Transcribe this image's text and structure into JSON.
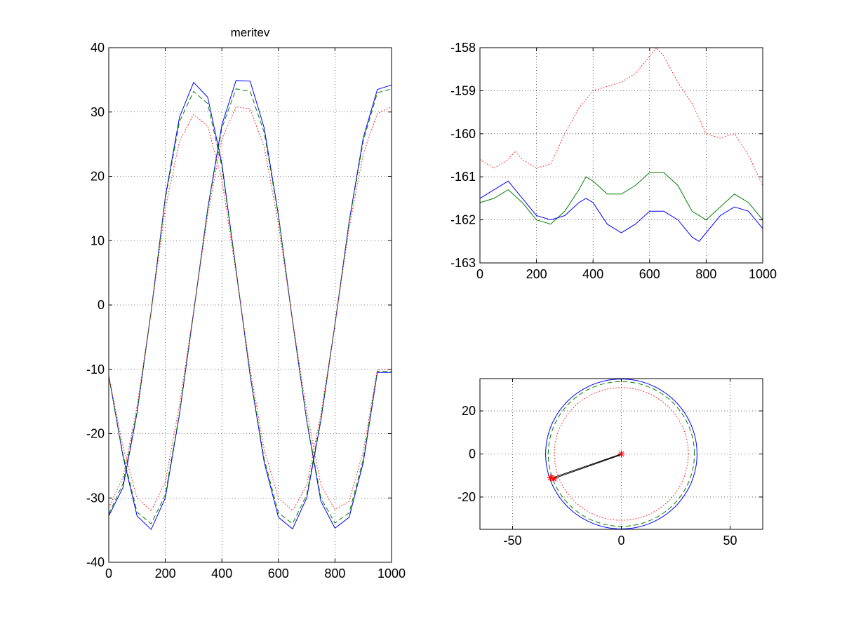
{
  "chart_data": [
    {
      "type": "line",
      "title": "meritev",
      "xlabel": "",
      "ylabel": "",
      "xlim": [
        0,
        1000
      ],
      "ylim": [
        -40,
        40
      ],
      "grid": true,
      "xticks": [
        0,
        200,
        400,
        600,
        800,
        1000
      ],
      "yticks": [
        40,
        30,
        20,
        10,
        0,
        -10,
        -20,
        -30,
        -40
      ],
      "series": [
        {
          "color": "#0000ff",
          "style": "solid",
          "x": [
            0,
            50,
            100,
            150,
            200,
            250,
            300,
            350,
            400,
            450,
            500,
            550,
            600,
            650,
            700,
            750,
            800,
            850,
            900,
            950,
            1000
          ],
          "y": [
            -32.8,
            -28.4,
            -16.8,
            -1.0,
            16.8,
            29.2,
            34.6,
            32.3,
            22.0,
            5.5,
            -11.0,
            -24.5,
            -33.0,
            -34.8,
            -30.0,
            -18.0,
            -3.0,
            13.0,
            26.0,
            33.5,
            34.2
          ]
        },
        {
          "color": "#0000ff",
          "style": "solid",
          "x": [
            0,
            50,
            100,
            150,
            200,
            250,
            300,
            350,
            400,
            450,
            500,
            550,
            600,
            650,
            700,
            750,
            800,
            850,
            900,
            950,
            1000
          ],
          "y": [
            -11.0,
            -23.5,
            -32.8,
            -34.9,
            -30.0,
            -17.0,
            -1.2,
            15.0,
            28.0,
            34.9,
            34.8,
            27.5,
            14.0,
            -2.5,
            -18.0,
            -30.5,
            -34.7,
            -33.0,
            -24.5,
            -10.5,
            -10.5
          ]
        },
        {
          "color": "#008000",
          "style": "dashed",
          "x": [
            0,
            50,
            100,
            150,
            200,
            250,
            300,
            350,
            400,
            450,
            500,
            550,
            600,
            650,
            700,
            750,
            800,
            850,
            900,
            950,
            1000
          ],
          "y": [
            -32.5,
            -27.8,
            -16.5,
            -1.0,
            16.5,
            28.5,
            33.2,
            31.3,
            21.5,
            5.4,
            -10.8,
            -24.0,
            -32.3,
            -34.0,
            -29.5,
            -17.7,
            -3.0,
            12.8,
            25.5,
            33.0,
            33.6
          ]
        },
        {
          "color": "#008000",
          "style": "dashed",
          "x": [
            0,
            50,
            100,
            150,
            200,
            250,
            300,
            350,
            400,
            450,
            500,
            550,
            600,
            650,
            700,
            750,
            800,
            850,
            900,
            950,
            1000
          ],
          "y": [
            -11.0,
            -23.2,
            -32.2,
            -34.0,
            -29.5,
            -16.8,
            -1.2,
            14.8,
            27.5,
            33.6,
            33.2,
            26.8,
            13.8,
            -2.5,
            -17.8,
            -30.0,
            -33.9,
            -32.3,
            -24.0,
            -10.3,
            -10.3
          ]
        },
        {
          "color": "#ff0000",
          "style": "dotted",
          "x": [
            0,
            50,
            100,
            150,
            200,
            250,
            300,
            350,
            400,
            450,
            500,
            550,
            600,
            650,
            700,
            750,
            800,
            850,
            900,
            950,
            1000
          ],
          "y": [
            -31.5,
            -26.8,
            -15.8,
            -1.0,
            15.0,
            25.5,
            29.6,
            27.8,
            19.5,
            5.0,
            -10.0,
            -22.5,
            -30.0,
            -32.0,
            -28.0,
            -17.0,
            -3.0,
            12.0,
            23.5,
            29.8,
            30.8
          ]
        },
        {
          "color": "#ff0000",
          "style": "dotted",
          "x": [
            0,
            50,
            100,
            150,
            200,
            250,
            300,
            350,
            400,
            450,
            500,
            550,
            600,
            650,
            700,
            750,
            800,
            850,
            900,
            950,
            1000
          ],
          "y": [
            -11.0,
            -22.0,
            -30.0,
            -32.0,
            -27.5,
            -15.5,
            -1.0,
            14.0,
            25.8,
            30.8,
            30.5,
            24.5,
            12.5,
            -2.3,
            -16.5,
            -28.0,
            -31.8,
            -30.5,
            -22.8,
            -10.0,
            -10.0
          ]
        }
      ]
    },
    {
      "type": "line",
      "title": "",
      "xlim": [
        0,
        1000
      ],
      "ylim": [
        -163,
        -158
      ],
      "grid": true,
      "xticks": [
        0,
        200,
        400,
        600,
        800,
        1000
      ],
      "yticks": [
        -158,
        -159,
        -160,
        -161,
        -162,
        -163
      ],
      "series": [
        {
          "color": "#ff0000",
          "style": "dotted",
          "x": [
            0,
            50,
            100,
            125,
            150,
            200,
            250,
            300,
            350,
            400,
            450,
            500,
            550,
            600,
            625,
            650,
            700,
            750,
            800,
            850,
            900,
            950,
            1000
          ],
          "y": [
            -160.6,
            -160.8,
            -160.6,
            -160.4,
            -160.6,
            -160.8,
            -160.7,
            -160.0,
            -159.4,
            -159.0,
            -158.9,
            -158.8,
            -158.6,
            -158.2,
            -158.0,
            -158.2,
            -158.8,
            -159.3,
            -160.0,
            -160.1,
            -160.0,
            -160.5,
            -161.2
          ]
        },
        {
          "color": "#008000",
          "style": "solid",
          "x": [
            0,
            50,
            100,
            150,
            200,
            250,
            300,
            350,
            375,
            400,
            450,
            500,
            550,
            600,
            650,
            700,
            750,
            800,
            850,
            900,
            950,
            1000
          ],
          "y": [
            -161.6,
            -161.5,
            -161.3,
            -161.6,
            -162.0,
            -162.1,
            -161.8,
            -161.3,
            -161.0,
            -161.1,
            -161.4,
            -161.4,
            -161.2,
            -160.9,
            -160.9,
            -161.2,
            -161.8,
            -162.0,
            -161.7,
            -161.4,
            -161.6,
            -162.0
          ]
        },
        {
          "color": "#0000ff",
          "style": "solid",
          "x": [
            0,
            50,
            100,
            150,
            200,
            250,
            300,
            350,
            375,
            400,
            450,
            500,
            550,
            600,
            650,
            700,
            750,
            775,
            800,
            850,
            900,
            950,
            1000
          ],
          "y": [
            -161.5,
            -161.3,
            -161.1,
            -161.5,
            -161.9,
            -162.0,
            -161.9,
            -161.6,
            -161.5,
            -161.6,
            -162.1,
            -162.3,
            -162.1,
            -161.8,
            -161.8,
            -162.0,
            -162.4,
            -162.5,
            -162.3,
            -161.9,
            -161.7,
            -161.8,
            -162.2
          ]
        }
      ]
    },
    {
      "type": "line",
      "title": "",
      "xlim": [
        -65,
        65
      ],
      "ylim": [
        -35,
        35
      ],
      "grid": true,
      "equal_aspect": true,
      "xticks": [
        -50,
        0,
        50
      ],
      "yticks": [
        20,
        0,
        -20
      ],
      "circles": [
        {
          "color": "#0000ff",
          "style": "solid",
          "center": [
            0,
            0
          ],
          "radius": 34.8
        },
        {
          "color": "#008000",
          "style": "dashed",
          "center": [
            0,
            0
          ],
          "radius": 33.6
        },
        {
          "color": "#ff0000",
          "style": "dotted",
          "center": [
            0,
            0
          ],
          "radius": 30.8
        }
      ],
      "vector": {
        "color": "#000000",
        "from": [
          0,
          0
        ],
        "to": [
          -31.5,
          -11.0
        ]
      },
      "markers": [
        {
          "color": "#ff0000",
          "symbol": "*",
          "x": 0,
          "y": 0
        },
        {
          "color": "#ff0000",
          "symbol": "*",
          "x": -32.5,
          "y": -11.0
        },
        {
          "color": "#ff0000",
          "symbol": "*",
          "x": -31.0,
          "y": -11.5
        }
      ]
    }
  ]
}
